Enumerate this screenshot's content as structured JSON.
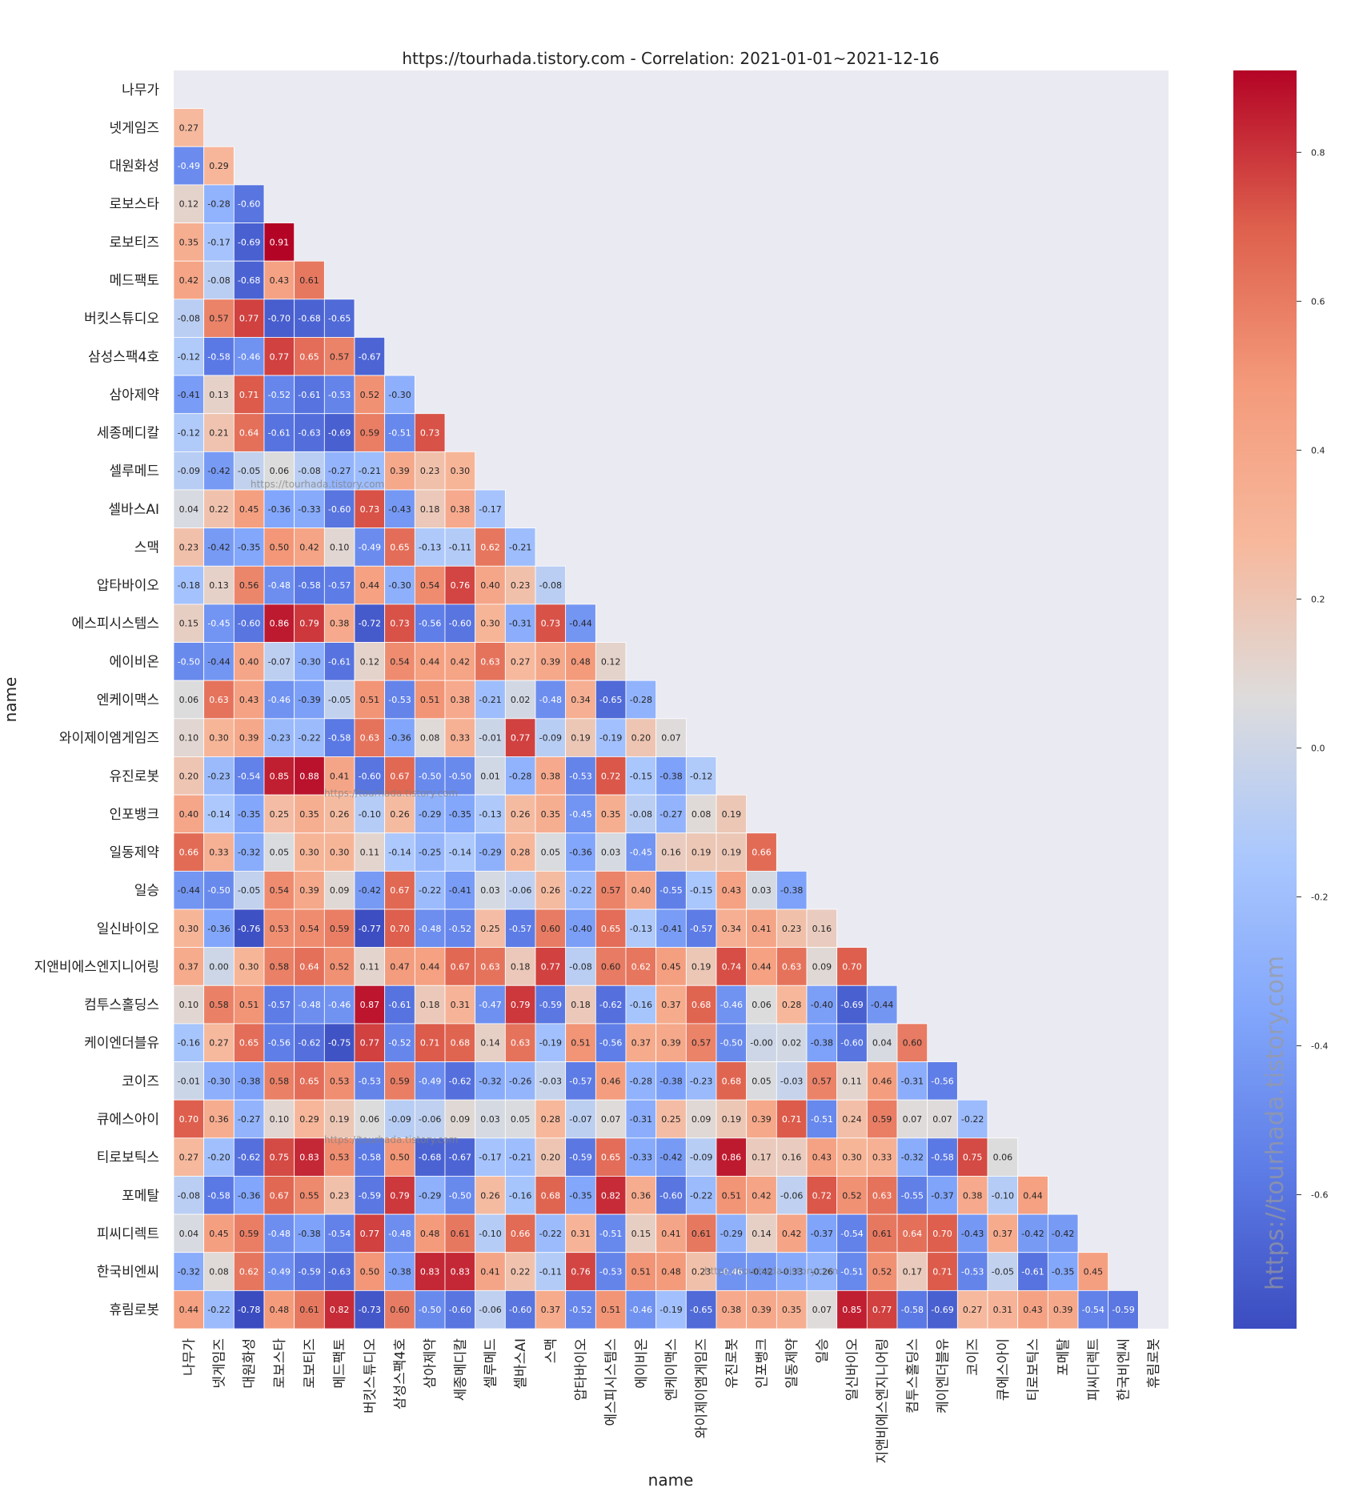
{
  "chart_data": {
    "type": "heatmap",
    "title": "https://tourhada.tistory.com - Correlation: 2021-01-01~2021-12-16",
    "xlabel": "name",
    "ylabel": "name",
    "mask": "upper-triangle-and-diagonal",
    "labels": [
      "나무가",
      "넷게임즈",
      "대원화성",
      "로보스타",
      "로보티즈",
      "메드팩토",
      "버킷스튜디오",
      "삼성스팩4호",
      "삼아제약",
      "세종메디칼",
      "셀루메드",
      "셀바스AI",
      "스맥",
      "압타바이오",
      "에스피시스템스",
      "에이비온",
      "엔케이맥스",
      "와이제이엠게임즈",
      "유진로봇",
      "인포뱅크",
      "일동제약",
      "일승",
      "일신바이오",
      "지앤비에스엔지니어링",
      "컴투스홀딩스",
      "케이엔더블유",
      "코이즈",
      "큐에스아이",
      "티로보틱스",
      "포메탈",
      "피씨디렉트",
      "한국비엔씨",
      "휴림로봇"
    ],
    "rows": [
      [],
      [
        "0.27"
      ],
      [
        "-0.49",
        "0.29"
      ],
      [
        "0.12",
        "-0.28",
        "-0.60"
      ],
      [
        "0.35",
        "-0.17",
        "-0.69",
        "0.91"
      ],
      [
        "0.42",
        "-0.08",
        "-0.68",
        "0.43",
        "0.61"
      ],
      [
        "-0.08",
        "0.57",
        "0.77",
        "-0.70",
        "-0.68",
        "-0.65"
      ],
      [
        "-0.12",
        "-0.58",
        "-0.46",
        "0.77",
        "0.65",
        "0.57",
        "-0.67"
      ],
      [
        "-0.41",
        "0.13",
        "0.71",
        "-0.52",
        "-0.61",
        "-0.53",
        "0.52",
        "-0.30"
      ],
      [
        "-0.12",
        "0.21",
        "0.64",
        "-0.61",
        "-0.63",
        "-0.69",
        "0.59",
        "-0.51",
        "0.73"
      ],
      [
        "-0.09",
        "-0.42",
        "-0.05",
        "0.06",
        "-0.08",
        "-0.27",
        "-0.21",
        "0.39",
        "0.23",
        "0.30"
      ],
      [
        "0.04",
        "0.22",
        "0.45",
        "-0.36",
        "-0.33",
        "-0.60",
        "0.73",
        "-0.43",
        "0.18",
        "0.38",
        "-0.17"
      ],
      [
        "0.23",
        "-0.42",
        "-0.35",
        "0.50",
        "0.42",
        "0.10",
        "-0.49",
        "0.65",
        "-0.13",
        "-0.11",
        "0.62",
        "-0.21"
      ],
      [
        "-0.18",
        "0.13",
        "0.56",
        "-0.48",
        "-0.58",
        "-0.57",
        "0.44",
        "-0.30",
        "0.54",
        "0.76",
        "0.40",
        "0.23",
        "-0.08"
      ],
      [
        "0.15",
        "-0.45",
        "-0.60",
        "0.86",
        "0.79",
        "0.38",
        "-0.72",
        "0.73",
        "-0.56",
        "-0.60",
        "0.30",
        "-0.31",
        "0.73",
        "-0.44"
      ],
      [
        "-0.50",
        "-0.44",
        "0.40",
        "-0.07",
        "-0.30",
        "-0.61",
        "0.12",
        "0.54",
        "0.44",
        "0.42",
        "0.63",
        "0.27",
        "0.39",
        "0.48",
        "0.12"
      ],
      [
        "0.06",
        "0.63",
        "0.43",
        "-0.46",
        "-0.39",
        "-0.05",
        "0.51",
        "-0.53",
        "0.51",
        "0.38",
        "-0.21",
        "0.02",
        "-0.48",
        "0.34",
        "-0.65",
        "-0.28"
      ],
      [
        "0.10",
        "0.30",
        "0.39",
        "-0.23",
        "-0.22",
        "-0.58",
        "0.63",
        "-0.36",
        "0.08",
        "0.33",
        "-0.01",
        "0.77",
        "-0.09",
        "0.19",
        "-0.19",
        "0.20",
        "0.07"
      ],
      [
        "0.20",
        "-0.23",
        "-0.54",
        "0.85",
        "0.88",
        "0.41",
        "-0.60",
        "0.67",
        "-0.50",
        "-0.50",
        "0.01",
        "-0.28",
        "0.38",
        "-0.53",
        "0.72",
        "-0.15",
        "-0.38",
        "-0.12"
      ],
      [
        "0.40",
        "-0.14",
        "-0.35",
        "0.25",
        "0.35",
        "0.26",
        "-0.10",
        "0.26",
        "-0.29",
        "-0.35",
        "-0.13",
        "0.26",
        "0.35",
        "-0.45",
        "0.35",
        "-0.08",
        "-0.27",
        "0.08",
        "0.19"
      ],
      [
        "0.66",
        "0.33",
        "-0.32",
        "0.05",
        "0.30",
        "0.30",
        "0.11",
        "-0.14",
        "-0.25",
        "-0.14",
        "-0.29",
        "0.28",
        "0.05",
        "-0.36",
        "0.03",
        "-0.45",
        "0.16",
        "0.19",
        "0.19",
        "0.66"
      ],
      [
        "-0.44",
        "-0.50",
        "-0.05",
        "0.54",
        "0.39",
        "0.09",
        "-0.42",
        "0.67",
        "-0.22",
        "-0.41",
        "0.03",
        "-0.06",
        "0.26",
        "-0.22",
        "0.57",
        "0.40",
        "-0.55",
        "-0.15",
        "0.43",
        "0.03",
        "-0.38"
      ],
      [
        "0.30",
        "-0.36",
        "-0.76",
        "0.53",
        "0.54",
        "0.59",
        "-0.77",
        "0.70",
        "-0.48",
        "-0.52",
        "0.25",
        "-0.57",
        "0.60",
        "-0.40",
        "0.65",
        "-0.13",
        "-0.41",
        "-0.57",
        "0.34",
        "0.41",
        "0.23",
        "0.16"
      ],
      [
        "0.37",
        "0.00",
        "0.30",
        "0.58",
        "0.64",
        "0.52",
        "0.11",
        "0.47",
        "0.44",
        "0.67",
        "0.63",
        "0.18",
        "0.77",
        "-0.08",
        "0.60",
        "0.62",
        "0.45",
        "0.19",
        "0.74",
        "0.44",
        "0.63",
        "0.09",
        "0.70"
      ],
      [
        "0.10",
        "0.58",
        "0.51",
        "-0.57",
        "-0.48",
        "-0.46",
        "0.87",
        "-0.61",
        "0.18",
        "0.31",
        "-0.47",
        "0.79",
        "-0.59",
        "0.18",
        "-0.62",
        "-0.16",
        "0.37",
        "0.68",
        "-0.46",
        "0.06",
        "0.28",
        "-0.40",
        "-0.69",
        "-0.44"
      ],
      [
        "-0.16",
        "0.27",
        "0.65",
        "-0.56",
        "-0.62",
        "-0.75",
        "0.77",
        "-0.52",
        "0.71",
        "0.68",
        "0.14",
        "0.63",
        "-0.19",
        "0.51",
        "-0.56",
        "0.37",
        "0.39",
        "0.57",
        "-0.50",
        "-0.00",
        "0.02",
        "-0.38",
        "-0.60",
        "0.04",
        "0.60"
      ],
      [
        "-0.01",
        "-0.30",
        "-0.38",
        "0.58",
        "0.65",
        "0.53",
        "-0.53",
        "0.59",
        "-0.49",
        "-0.62",
        "-0.32",
        "-0.26",
        "-0.03",
        "-0.57",
        "0.46",
        "-0.28",
        "-0.38",
        "-0.23",
        "0.68",
        "0.05",
        "-0.03",
        "0.57",
        "0.11",
        "0.46",
        "-0.31",
        "-0.56"
      ],
      [
        "0.70",
        "0.36",
        "-0.27",
        "0.10",
        "0.29",
        "0.19",
        "0.06",
        "-0.09",
        "-0.06",
        "0.09",
        "0.03",
        "0.05",
        "0.28",
        "-0.07",
        "0.07",
        "-0.31",
        "0.25",
        "0.09",
        "0.19",
        "0.39",
        "0.71",
        "-0.51",
        "0.24",
        "0.59",
        "0.07",
        "0.07",
        "-0.22"
      ],
      [
        "0.27",
        "-0.20",
        "-0.62",
        "0.75",
        "0.83",
        "0.53",
        "-0.58",
        "0.50",
        "-0.68",
        "-0.67",
        "-0.17",
        "-0.21",
        "0.20",
        "-0.59",
        "0.65",
        "-0.33",
        "-0.42",
        "-0.09",
        "0.86",
        "0.17",
        "0.16",
        "0.43",
        "0.30",
        "0.33",
        "-0.32",
        "-0.58",
        "0.75",
        "0.06"
      ],
      [
        "-0.08",
        "-0.58",
        "-0.36",
        "0.67",
        "0.55",
        "0.23",
        "-0.59",
        "0.79",
        "-0.29",
        "-0.50",
        "0.26",
        "-0.16",
        "0.68",
        "-0.35",
        "0.82",
        "0.36",
        "-0.60",
        "-0.22",
        "0.51",
        "0.42",
        "-0.06",
        "0.72",
        "0.52",
        "0.63",
        "-0.55",
        "-0.37",
        "0.38",
        "-0.10",
        "0.44"
      ],
      [
        "0.04",
        "0.45",
        "0.59",
        "-0.48",
        "-0.38",
        "-0.54",
        "0.77",
        "-0.48",
        "0.48",
        "0.61",
        "-0.10",
        "0.66",
        "-0.22",
        "0.31",
        "-0.51",
        "0.15",
        "0.41",
        "0.61",
        "-0.29",
        "0.14",
        "0.42",
        "-0.37",
        "-0.54",
        "0.61",
        "0.64",
        "0.70",
        "-0.43",
        "0.37",
        "-0.42",
        "-0.42"
      ],
      [
        "-0.32",
        "0.08",
        "0.62",
        "-0.49",
        "-0.59",
        "-0.63",
        "0.50",
        "-0.38",
        "0.83",
        "0.83",
        "0.41",
        "0.22",
        "-0.11",
        "0.76",
        "-0.53",
        "0.51",
        "0.48",
        "0.23",
        "-0.46",
        "-0.42",
        "-0.33",
        "-0.26",
        "-0.51",
        "0.52",
        "0.17",
        "0.71",
        "-0.53",
        "-0.05",
        "-0.61",
        "-0.35",
        "0.45"
      ],
      [
        "0.44",
        "-0.22",
        "-0.78",
        "0.48",
        "0.61",
        "0.82",
        "-0.73",
        "0.60",
        "-0.50",
        "-0.60",
        "-0.06",
        "-0.60",
        "0.37",
        "-0.52",
        "0.51",
        "-0.46",
        "-0.19",
        "-0.65",
        "0.38",
        "0.39",
        "0.35",
        "0.07",
        "0.85",
        "0.77",
        "-0.58",
        "-0.69",
        "0.27",
        "0.31",
        "0.43",
        "0.39",
        "-0.54",
        "-0.59"
      ]
    ],
    "colorbar": {
      "colormap": "coolwarm",
      "vmin": -0.78,
      "vmax": 0.91,
      "ticks": [
        "0.8",
        "0.6",
        "0.4",
        "0.2",
        "0.0",
        "-0.2",
        "-0.4",
        "-0.6"
      ]
    },
    "watermarks": [
      "https://tourhada.tistory.com",
      "https://tourhada.tistory.com",
      "https://tourhada.tistory.com",
      "https://tourhada.tistory.com",
      "https://tourhada.tistory.com"
    ]
  }
}
